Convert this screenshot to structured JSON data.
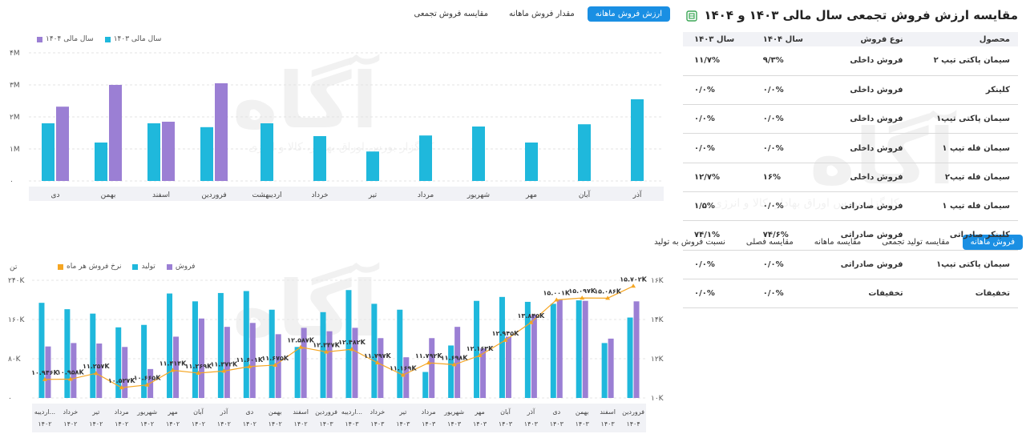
{
  "top_tabs": [
    {
      "label": "ارزش فروش ماهانه",
      "active": true
    },
    {
      "label": "مقدار فروش ماهانه",
      "active": false
    },
    {
      "label": "مقایسه فروش تجمعی",
      "active": false
    }
  ],
  "bottom_tabs": [
    {
      "label": "فروش ماهانه",
      "active": true
    },
    {
      "label": "مقایسه تولید تجمعی",
      "active": false
    },
    {
      "label": "مقایسه ماهانه",
      "active": false
    },
    {
      "label": "مقایسه فصلی",
      "active": false
    },
    {
      "label": "نسبت فروش به تولید",
      "active": false
    }
  ],
  "watermark": {
    "logo": "آگاه",
    "subtitle": "کارگزار بورس اوراق بهادار، کالا و انرژی"
  },
  "colors": {
    "accent": "#1a8fe3",
    "cyan": "#1fb8dc",
    "purple": "#9b7fd4",
    "orange": "#f5a623",
    "row_header_bg": "#f1f2f6"
  },
  "table": {
    "title": "مقایسه ارزش فروش تجمعی سال مالی ۱۴۰۳ و ۱۴۰۴",
    "export_icon": "excel-export-icon",
    "headers": [
      "محصول",
      "نوع فروش",
      "سال ۱۴۰۴",
      "سال ۱۴۰۳"
    ],
    "rows": [
      [
        "سیمان پاکتی تیپ ۲",
        "فروش داخلی",
        "۹/۳%",
        "۱۱/۷%"
      ],
      [
        "کلینکر",
        "فروش داخلی",
        "۰/۰%",
        "۰/۰%"
      ],
      [
        "سیمان پاکتی تیپ۱",
        "فروش داخلی",
        "۰/۰%",
        "۰/۰%"
      ],
      [
        "سیمان فله تیپ ۱",
        "فروش داخلی",
        "۰/۰%",
        "۰/۰%"
      ],
      [
        "سیمان فله تیپ۲",
        "فروش داخلی",
        "۱۶%",
        "۱۲/۷%"
      ],
      [
        "سیمان فله تیپ ۱",
        "فروش صادراتی",
        "۰/۰%",
        "۱/۵%"
      ],
      [
        "کلینکر صادراتی",
        "فروش صادراتی",
        "۷۴/۶%",
        "۷۴/۱%"
      ],
      [
        "سیمان پاکتی تیپ۱",
        "فروش صادراتی",
        "۰/۰%",
        "۰/۰%"
      ],
      [
        "تخفیفات",
        "تخفیفات",
        "۰/۰%",
        "۰/۰%"
      ]
    ]
  },
  "chart_data": [
    {
      "type": "bar",
      "legend": [
        {
          "name": "سال مالی ۱۴۰۴",
          "color": "#9b7fd4"
        },
        {
          "name": "سال مالی ۱۴۰۳",
          "color": "#1fb8dc"
        }
      ],
      "categories": [
        "دی",
        "بهمن",
        "اسفند",
        "فروردین",
        "اردیبهشت",
        "خرداد",
        "تیر",
        "مرداد",
        "شهریور",
        "مهر",
        "آبان",
        "آذر"
      ],
      "series": [
        {
          "name": "سال مالی ۱۴۰۳",
          "color": "#1fb8dc",
          "values": [
            1.8,
            1.2,
            1.8,
            1.68,
            1.8,
            1.4,
            0.92,
            1.42,
            1.7,
            1.2,
            1.77,
            2.55
          ]
        },
        {
          "name": "سال مالی ۱۴۰۴",
          "color": "#9b7fd4",
          "values": [
            2.32,
            3.0,
            1.85,
            3.05,
            null,
            null,
            null,
            null,
            null,
            null,
            null,
            null
          ]
        }
      ],
      "y_ticks": [
        "۴M",
        "۳M",
        "۲M",
        "۱M",
        "۰"
      ],
      "ylim": [
        0,
        4
      ]
    },
    {
      "type": "bar",
      "legend": [
        {
          "name": "فروش",
          "color": "#9b7fd4"
        },
        {
          "name": "تولید",
          "color": "#1fb8dc"
        },
        {
          "name": "نرخ فروش هر ماه",
          "color": "#f5a623"
        }
      ],
      "y_left_title": "تن",
      "y_left_ticks": [
        "۲۴۰K",
        "۱۶۰K",
        "۸۰K",
        "۰"
      ],
      "y_left_lim": [
        0,
        240
      ],
      "y_right_ticks": [
        "۱۶K",
        "۱۴K",
        "۱۲K",
        "۱۰K"
      ],
      "y_right_lim": [
        10,
        16
      ],
      "categories": [
        "اردیبه...",
        "خرداد",
        "تیر",
        "مرداد",
        "شهریور",
        "مهر",
        "آبان",
        "آذر",
        "دی",
        "بهمن",
        "اسفند",
        "فروردین",
        "اردیبه...",
        "خرداد",
        "تیر",
        "مرداد",
        "شهریور",
        "مهر",
        "آبان",
        "آذر",
        "دی",
        "بهمن",
        "اسفند",
        "فروردین"
      ],
      "year_labels": [
        "۱۴۰۲",
        "۱۴۰۲",
        "۱۴۰۲",
        "۱۴۰۲",
        "۱۴۰۲",
        "۱۴۰۲",
        "۱۴۰۲",
        "۱۴۰۲",
        "۱۴۰۲",
        "۱۴۰۲",
        "۱۴۰۲",
        "۱۴۰۳",
        "۱۴۰۳",
        "۱۴۰۳",
        "۱۴۰۳",
        "۱۴۰۳",
        "۱۴۰۳",
        "۱۴۰۳",
        "۱۴۰۳",
        "۱۴۰۳",
        "۱۴۰۳",
        "۱۴۰۳",
        "۱۴۰۳",
        "۱۴۰۴"
      ],
      "production": [
        194,
        181,
        172,
        144,
        149,
        213,
        197,
        214,
        218,
        180,
        104,
        175,
        220,
        192,
        180,
        53,
        107,
        198,
        206,
        196,
        192,
        199,
        112,
        164
      ],
      "sales": [
        105,
        112,
        111,
        104,
        59,
        125,
        162,
        145,
        153,
        130,
        143,
        136,
        143,
        122,
        83,
        122,
        145,
        101,
        125,
        170,
        200,
        198,
        121,
        197
      ],
      "rate": [
        10.946,
        10.958,
        11.257,
        10.527,
        10.665,
        11.414,
        11.269,
        11.372,
        11.601,
        11.675,
        12.587,
        12.347,
        12.482,
        11.797,
        11.169,
        11.792,
        11.698,
        12.163,
        12.945,
        13.845,
        15.001,
        15.097,
        15.086,
        15.702
      ],
      "rate_labels": [
        "۱۰.۹۴۶K",
        "۱۰.۹۵۸K",
        "۱۱.۲۵۷K",
        "۱۰.۵۲۷K",
        "۱۰.۶۶۵K",
        "۱۱.۴۱۴K",
        "۱۱.۲۶۹K",
        "۱۱.۳۷۲K",
        "۱۱.۶۰۱K",
        "۱۱.۶۷۵K",
        "۱۲.۵۸۷K",
        "۱۲.۳۴۷K",
        "۱۲.۴۸۲K",
        "۱۱.۷۹۷K",
        "۱۱.۱۶۹K",
        "۱۱.۷۹۲K",
        "۱۱.۶۹۸K",
        "۱۲.۱۶۳K",
        "۱۲.۹۴۵K",
        "۱۳.۸۴۵K",
        "۱۵.۰۰۱K",
        "۱۵.۰۹۷K",
        "۱۵.۰۸۶K",
        "۱۵.۷۰۲K"
      ]
    }
  ]
}
